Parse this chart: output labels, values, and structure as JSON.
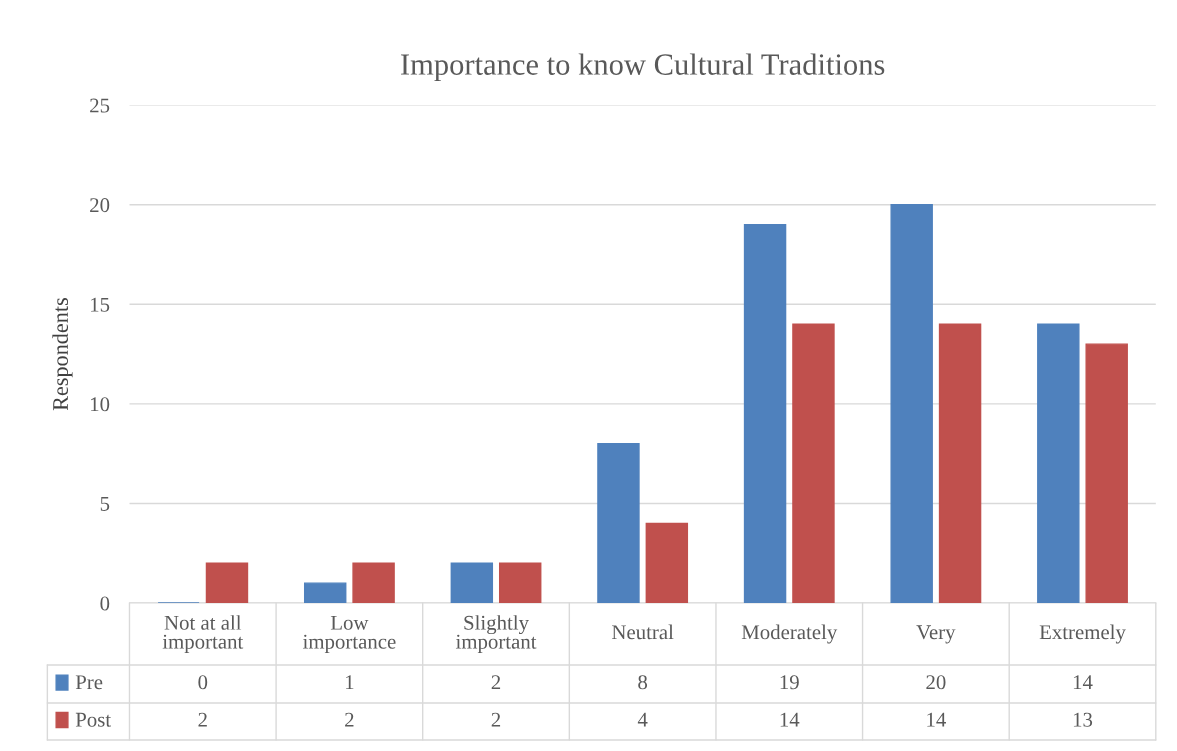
{
  "chart_data": {
    "type": "bar",
    "title": "Importance to know Cultural Traditions",
    "ylabel": "Respondents",
    "categories": [
      "Not at all\nimportant",
      "Low\nimportance",
      "Slightly\nimportant",
      "Neutral",
      "Moderately",
      "Very",
      "Extremely"
    ],
    "series": [
      {
        "name": "Pre",
        "color": "#4f81bd",
        "values": [
          0,
          1,
          2,
          8,
          19,
          20,
          14
        ]
      },
      {
        "name": "Post",
        "color": "#c0504d",
        "values": [
          2,
          2,
          2,
          4,
          14,
          14,
          13
        ]
      }
    ],
    "ylim": [
      0,
      25
    ],
    "yticks": [
      0,
      5,
      10,
      15,
      20,
      25
    ],
    "grid": "y",
    "legend": "bottom",
    "data_labels": true
  }
}
